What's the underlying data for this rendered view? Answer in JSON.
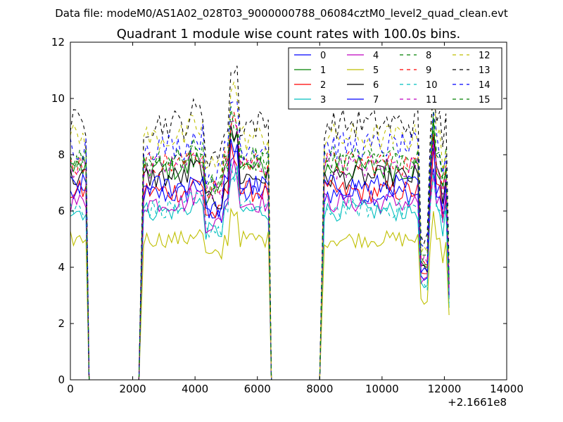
{
  "suptitle": "Data file: modeM0/AS1A02_028T03_9000000788_06084cztM0_level2_quad_clean.evt",
  "chart_data": {
    "type": "line",
    "title": "Quadrant 1 module wise count rates with 100.0s bins.",
    "xlabel": "",
    "ylabel": "",
    "xlim": [
      0,
      14000
    ],
    "ylim": [
      0,
      12
    ],
    "x_offset_label": "+2.1661e8",
    "xticks": [
      0,
      2000,
      4000,
      6000,
      8000,
      10000,
      12000,
      14000
    ],
    "yticks": [
      0,
      2,
      4,
      6,
      8,
      10,
      12
    ],
    "grid": false,
    "legend_position": "top-right",
    "legend_ncol": 4,
    "segments": [
      {
        "from": 0,
        "to": 500,
        "n": 6
      },
      {
        "from": 2350,
        "to": 6350,
        "n": 41
      },
      {
        "from": 8150,
        "to": 12150,
        "n": 41
      }
    ],
    "series": [
      {
        "name": "0",
        "color": "#0000ff",
        "dash": "solid",
        "base": 6.6
      },
      {
        "name": "1",
        "color": "#008000",
        "dash": "solid",
        "base": 7.5
      },
      {
        "name": "2",
        "color": "#ff0000",
        "dash": "solid",
        "base": 6.7
      },
      {
        "name": "3",
        "color": "#00bfbf",
        "dash": "solid",
        "base": 6.0
      },
      {
        "name": "4",
        "color": "#bf00bf",
        "dash": "solid",
        "base": 6.3
      },
      {
        "name": "5",
        "color": "#bfbf00",
        "dash": "solid",
        "base": 5.0
      },
      {
        "name": "6",
        "color": "#000000",
        "dash": "solid",
        "base": 7.2
      },
      {
        "name": "7",
        "color": "#0000ff",
        "dash": "solid",
        "base": 6.9
      },
      {
        "name": "8",
        "color": "#008000",
        "dash": "dashed",
        "base": 7.9
      },
      {
        "name": "9",
        "color": "#ff0000",
        "dash": "dashed",
        "base": 7.7
      },
      {
        "name": "10",
        "color": "#00bfbf",
        "dash": "dashed",
        "base": 6.1
      },
      {
        "name": "11",
        "color": "#bf00bf",
        "dash": "dashed",
        "base": 7.6
      },
      {
        "name": "12",
        "color": "#bfbf00",
        "dash": "dashed",
        "base": 8.6
      },
      {
        "name": "13",
        "color": "#000000",
        "dash": "dashed",
        "base": 9.1
      },
      {
        "name": "14",
        "color": "#0000ff",
        "dash": "dashed",
        "base": 8.3
      },
      {
        "name": "15",
        "color": "#008000",
        "dash": "dashed",
        "base": 7.8
      }
    ]
  }
}
